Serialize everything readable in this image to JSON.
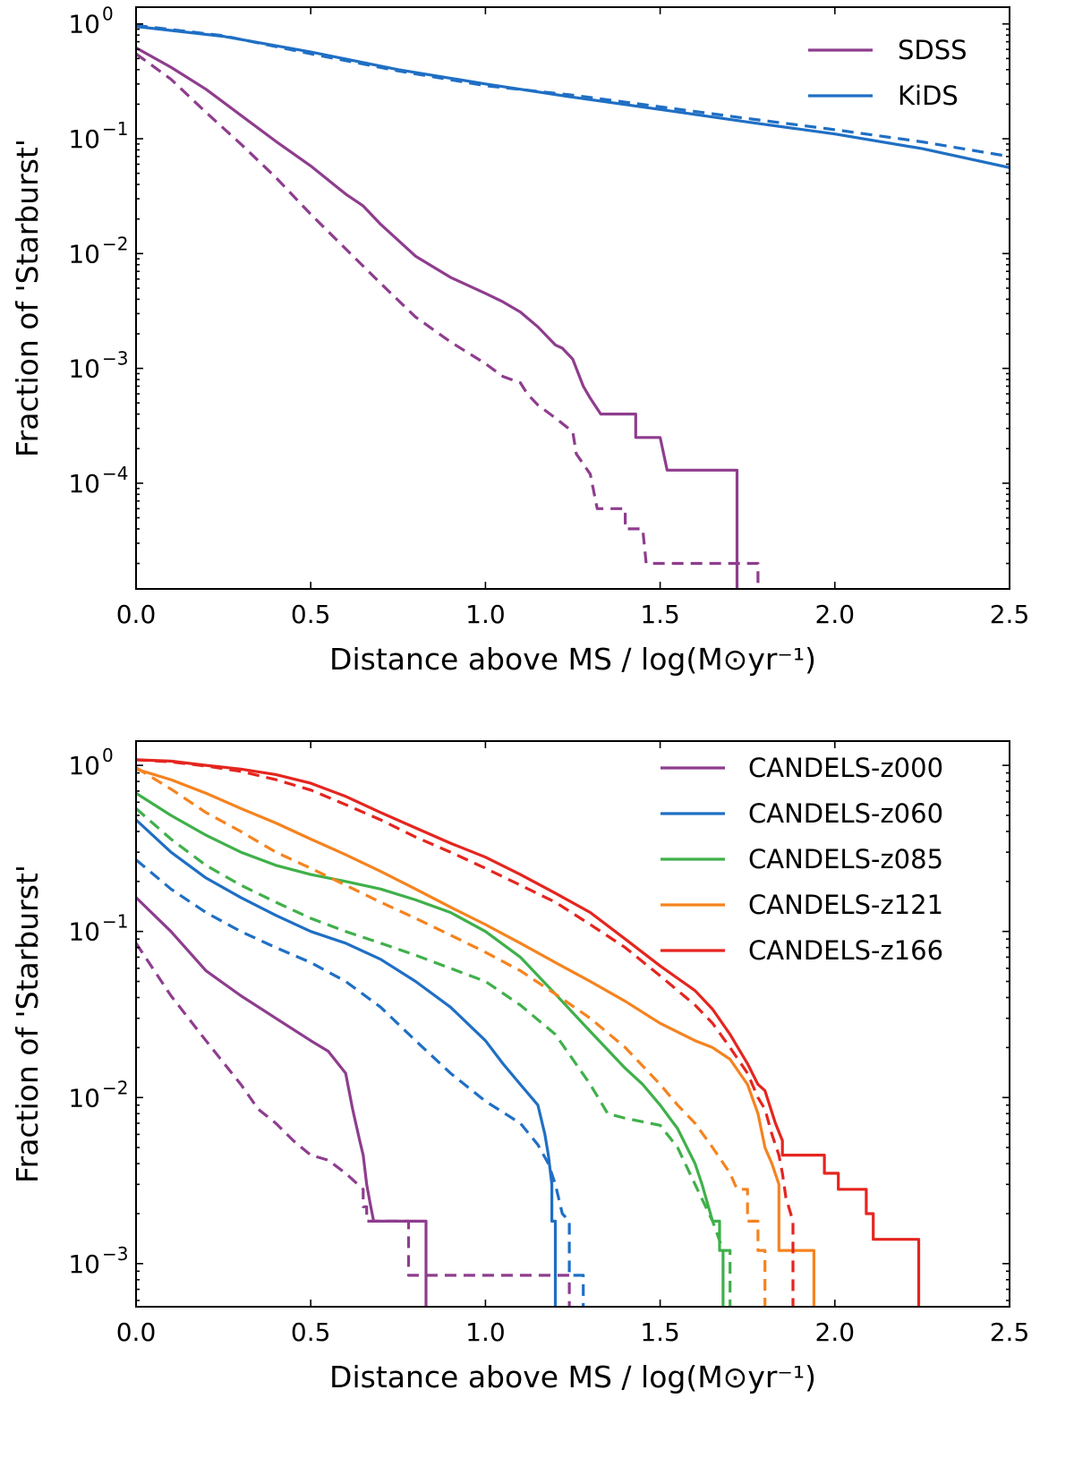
{
  "colors": {
    "purple": "#8e3d8e",
    "blue": "#1f6fc4",
    "green": "#3fb04a",
    "orange": "#f5831f",
    "red": "#e5251f"
  },
  "chart_data": [
    {
      "type": "line",
      "panel": "top",
      "yscale": "log",
      "xlabel": "Distance above MS / log(M⊙yr⁻¹)",
      "ylabel": "Fraction of 'Starburst'",
      "xlim": [
        0.0,
        2.5
      ],
      "ylim": [
        1.2e-05,
        1.4
      ],
      "xticks": [
        "0.0",
        "0.5",
        "1.0",
        "1.5",
        "2.0",
        "2.5"
      ],
      "yticks": [
        {
          "base": "10",
          "exp": "0",
          "value": 1
        },
        {
          "base": "10",
          "exp": "−1",
          "value": 0.1
        },
        {
          "base": "10",
          "exp": "−2",
          "value": 0.01
        },
        {
          "base": "10",
          "exp": "−3",
          "value": 0.001
        },
        {
          "base": "10",
          "exp": "−4",
          "value": 0.0001
        }
      ],
      "legend_position": "top-right",
      "legend": [
        {
          "name": "SDSS",
          "color": "purple"
        },
        {
          "name": "KiDS",
          "color": "blue"
        }
      ],
      "series": [
        {
          "name": "SDSS",
          "color": "purple",
          "style": "solid",
          "x": [
            0.0,
            0.1,
            0.2,
            0.3,
            0.4,
            0.5,
            0.6,
            0.65,
            0.7,
            0.8,
            0.9,
            1.0,
            1.05,
            1.1,
            1.15,
            1.2,
            1.22,
            1.25,
            1.28,
            1.3,
            1.33,
            1.33,
            1.43,
            1.43,
            1.5,
            1.52,
            1.52,
            1.72,
            1.72
          ],
          "y": [
            0.62,
            0.42,
            0.27,
            0.16,
            0.095,
            0.058,
            0.033,
            0.026,
            0.018,
            0.0095,
            0.0062,
            0.0045,
            0.0038,
            0.0031,
            0.0023,
            0.0016,
            0.0015,
            0.0012,
            0.0007,
            0.00055,
            0.0004,
            0.0004,
            0.0004,
            0.00025,
            0.00025,
            0.00013,
            0.00013,
            0.00013,
            1.2e-05
          ]
        },
        {
          "name": "SDSS",
          "color": "purple",
          "style": "dashed",
          "x": [
            0.0,
            0.1,
            0.2,
            0.3,
            0.4,
            0.5,
            0.6,
            0.7,
            0.8,
            0.9,
            1.0,
            1.05,
            1.1,
            1.12,
            1.15,
            1.2,
            1.25,
            1.26,
            1.3,
            1.32,
            1.32,
            1.4,
            1.4,
            1.45,
            1.46,
            1.46,
            1.78,
            1.78
          ],
          "y": [
            0.55,
            0.33,
            0.17,
            0.09,
            0.046,
            0.022,
            0.011,
            0.0055,
            0.0028,
            0.0017,
            0.0011,
            0.00085,
            0.00075,
            0.0006,
            0.00048,
            0.00037,
            0.00028,
            0.00018,
            0.00012,
            6e-05,
            6e-05,
            6e-05,
            4e-05,
            4e-05,
            2e-05,
            2e-05,
            2e-05,
            1.2e-05
          ]
        },
        {
          "name": "KiDS",
          "color": "blue",
          "style": "solid",
          "x": [
            0.0,
            0.25,
            0.5,
            0.75,
            1.0,
            1.25,
            1.5,
            1.75,
            2.0,
            2.25,
            2.5
          ],
          "y": [
            0.95,
            0.78,
            0.57,
            0.4,
            0.3,
            0.23,
            0.18,
            0.14,
            0.11,
            0.082,
            0.056
          ]
        },
        {
          "name": "KiDS",
          "color": "blue",
          "style": "dashed",
          "x": [
            0.0,
            0.25,
            0.5,
            0.75,
            1.0,
            1.25,
            1.5,
            1.75,
            2.0,
            2.25,
            2.5
          ],
          "y": [
            0.97,
            0.79,
            0.55,
            0.39,
            0.29,
            0.24,
            0.19,
            0.15,
            0.12,
            0.094,
            0.07
          ]
        }
      ]
    },
    {
      "type": "line",
      "panel": "bottom",
      "yscale": "log",
      "xlabel": "Distance above MS / log(M⊙yr⁻¹)",
      "ylabel": "Fraction of 'Starburst'",
      "xlim": [
        0.0,
        2.5
      ],
      "ylim": [
        0.00055,
        1.4
      ],
      "xticks": [
        "0.0",
        "0.5",
        "1.0",
        "1.5",
        "2.0",
        "2.5"
      ],
      "yticks": [
        {
          "base": "10",
          "exp": "0",
          "value": 1
        },
        {
          "base": "10",
          "exp": "−1",
          "value": 0.1
        },
        {
          "base": "10",
          "exp": "−2",
          "value": 0.01
        },
        {
          "base": "10",
          "exp": "−3",
          "value": 0.001
        }
      ],
      "legend_position": "top-right",
      "legend": [
        {
          "name": "CANDELS-z000",
          "color": "purple"
        },
        {
          "name": "CANDELS-z060",
          "color": "blue"
        },
        {
          "name": "CANDELS-z085",
          "color": "green"
        },
        {
          "name": "CANDELS-z121",
          "color": "orange"
        },
        {
          "name": "CANDELS-z166",
          "color": "red"
        }
      ],
      "series": [
        {
          "name": "CANDELS-z000",
          "color": "purple",
          "style": "solid",
          "x": [
            0.0,
            0.1,
            0.2,
            0.3,
            0.4,
            0.5,
            0.55,
            0.6,
            0.62,
            0.64,
            0.65,
            0.66,
            0.67,
            0.68,
            0.68,
            0.83,
            0.83
          ],
          "y": [
            0.16,
            0.1,
            0.058,
            0.041,
            0.03,
            0.022,
            0.019,
            0.014,
            0.0085,
            0.0055,
            0.0045,
            0.003,
            0.0023,
            0.0018,
            0.0018,
            0.0018,
            0.00055
          ]
        },
        {
          "name": "CANDELS-z000",
          "color": "purple",
          "style": "dashed",
          "x": [
            0.0,
            0.1,
            0.2,
            0.3,
            0.35,
            0.4,
            0.45,
            0.5,
            0.55,
            0.6,
            0.65,
            0.65,
            0.66,
            0.66,
            0.78,
            0.78,
            1.24,
            1.24
          ],
          "y": [
            0.085,
            0.041,
            0.022,
            0.012,
            0.0085,
            0.007,
            0.0055,
            0.0045,
            0.0042,
            0.0035,
            0.0028,
            0.0022,
            0.0022,
            0.0018,
            0.0018,
            0.00085,
            0.00085,
            0.00055
          ]
        },
        {
          "name": "CANDELS-z060",
          "color": "blue",
          "style": "solid",
          "x": [
            0.0,
            0.1,
            0.2,
            0.3,
            0.4,
            0.5,
            0.6,
            0.7,
            0.8,
            0.9,
            1.0,
            1.05,
            1.1,
            1.15,
            1.17,
            1.18,
            1.19,
            1.19,
            1.2,
            1.2
          ],
          "y": [
            0.47,
            0.3,
            0.21,
            0.16,
            0.125,
            0.1,
            0.085,
            0.068,
            0.05,
            0.035,
            0.022,
            0.016,
            0.012,
            0.009,
            0.006,
            0.0045,
            0.003,
            0.0018,
            0.0018,
            0.00055
          ]
        },
        {
          "name": "CANDELS-z060",
          "color": "blue",
          "style": "dashed",
          "x": [
            0.0,
            0.1,
            0.2,
            0.3,
            0.4,
            0.5,
            0.6,
            0.7,
            0.8,
            0.9,
            1.0,
            1.1,
            1.15,
            1.18,
            1.2,
            1.22,
            1.24,
            1.24,
            1.28,
            1.28
          ],
          "y": [
            0.27,
            0.18,
            0.13,
            0.1,
            0.08,
            0.065,
            0.05,
            0.035,
            0.022,
            0.014,
            0.0095,
            0.007,
            0.0052,
            0.004,
            0.003,
            0.002,
            0.0018,
            0.00085,
            0.00085,
            0.00055
          ]
        },
        {
          "name": "CANDELS-z085",
          "color": "green",
          "style": "solid",
          "x": [
            0.0,
            0.1,
            0.2,
            0.3,
            0.4,
            0.5,
            0.6,
            0.7,
            0.8,
            0.9,
            1.0,
            1.1,
            1.2,
            1.3,
            1.4,
            1.45,
            1.5,
            1.55,
            1.6,
            1.62,
            1.65,
            1.67,
            1.67,
            1.68,
            1.68
          ],
          "y": [
            0.68,
            0.5,
            0.38,
            0.3,
            0.25,
            0.22,
            0.2,
            0.18,
            0.155,
            0.13,
            0.1,
            0.07,
            0.042,
            0.025,
            0.015,
            0.012,
            0.009,
            0.0065,
            0.004,
            0.003,
            0.0018,
            0.0018,
            0.0012,
            0.0012,
            0.00055
          ]
        },
        {
          "name": "CANDELS-z085",
          "color": "green",
          "style": "dashed",
          "x": [
            0.0,
            0.1,
            0.2,
            0.3,
            0.4,
            0.5,
            0.6,
            0.7,
            0.8,
            0.9,
            1.0,
            1.1,
            1.2,
            1.3,
            1.35,
            1.4,
            1.5,
            1.55,
            1.6,
            1.65,
            1.68,
            1.7,
            1.7
          ],
          "y": [
            0.55,
            0.36,
            0.25,
            0.19,
            0.15,
            0.12,
            0.1,
            0.085,
            0.072,
            0.06,
            0.05,
            0.036,
            0.024,
            0.012,
            0.008,
            0.0075,
            0.0068,
            0.005,
            0.003,
            0.0018,
            0.0012,
            0.0012,
            0.00055
          ]
        },
        {
          "name": "CANDELS-z121",
          "color": "orange",
          "style": "solid",
          "x": [
            0.0,
            0.1,
            0.2,
            0.3,
            0.4,
            0.5,
            0.6,
            0.7,
            0.8,
            0.9,
            1.0,
            1.1,
            1.2,
            1.3,
            1.4,
            1.5,
            1.6,
            1.65,
            1.7,
            1.75,
            1.78,
            1.8,
            1.82,
            1.84,
            1.84,
            1.94,
            1.94
          ],
          "y": [
            0.95,
            0.82,
            0.68,
            0.55,
            0.45,
            0.36,
            0.29,
            0.23,
            0.18,
            0.14,
            0.11,
            0.085,
            0.065,
            0.05,
            0.038,
            0.028,
            0.022,
            0.02,
            0.017,
            0.012,
            0.008,
            0.005,
            0.004,
            0.003,
            0.0012,
            0.0012,
            0.00055
          ]
        },
        {
          "name": "CANDELS-z121",
          "color": "orange",
          "style": "dashed",
          "x": [
            0.0,
            0.1,
            0.2,
            0.3,
            0.4,
            0.5,
            0.6,
            0.7,
            0.8,
            0.9,
            1.0,
            1.1,
            1.2,
            1.3,
            1.4,
            1.5,
            1.55,
            1.6,
            1.65,
            1.7,
            1.72,
            1.75,
            1.75,
            1.78,
            1.78,
            1.8,
            1.8
          ],
          "y": [
            0.97,
            0.72,
            0.52,
            0.4,
            0.3,
            0.24,
            0.19,
            0.15,
            0.12,
            0.095,
            0.075,
            0.058,
            0.042,
            0.03,
            0.02,
            0.012,
            0.009,
            0.007,
            0.005,
            0.0035,
            0.0028,
            0.0028,
            0.0018,
            0.0018,
            0.0012,
            0.0012,
            0.00055
          ]
        },
        {
          "name": "CANDELS-z166",
          "color": "red",
          "style": "solid",
          "x": [
            0.0,
            0.1,
            0.2,
            0.3,
            0.4,
            0.5,
            0.6,
            0.7,
            0.8,
            0.9,
            1.0,
            1.1,
            1.2,
            1.3,
            1.4,
            1.5,
            1.6,
            1.65,
            1.7,
            1.75,
            1.78,
            1.8,
            1.83,
            1.85,
            1.85,
            1.97,
            1.97,
            2.01,
            2.01,
            2.09,
            2.09,
            2.11,
            2.11,
            2.24,
            2.24
          ],
          "y": [
            1.08,
            1.06,
            1.0,
            0.95,
            0.88,
            0.78,
            0.65,
            0.52,
            0.42,
            0.34,
            0.28,
            0.22,
            0.17,
            0.13,
            0.09,
            0.062,
            0.044,
            0.034,
            0.024,
            0.016,
            0.012,
            0.011,
            0.007,
            0.0055,
            0.0045,
            0.0045,
            0.0035,
            0.0035,
            0.0028,
            0.0028,
            0.002,
            0.002,
            0.0014,
            0.0014,
            0.00055
          ]
        },
        {
          "name": "CANDELS-z166",
          "color": "red",
          "style": "dashed",
          "x": [
            0.0,
            0.1,
            0.2,
            0.3,
            0.4,
            0.5,
            0.6,
            0.7,
            0.8,
            0.9,
            1.0,
            1.1,
            1.2,
            1.3,
            1.4,
            1.5,
            1.6,
            1.65,
            1.7,
            1.75,
            1.78,
            1.8,
            1.82,
            1.84,
            1.85,
            1.86,
            1.88,
            1.88
          ],
          "y": [
            1.08,
            1.05,
            0.99,
            0.92,
            0.82,
            0.71,
            0.58,
            0.47,
            0.37,
            0.3,
            0.24,
            0.19,
            0.15,
            0.11,
            0.08,
            0.054,
            0.036,
            0.028,
            0.02,
            0.014,
            0.01,
            0.0085,
            0.006,
            0.0045,
            0.0035,
            0.0025,
            0.0018,
            0.00055
          ]
        }
      ]
    }
  ]
}
